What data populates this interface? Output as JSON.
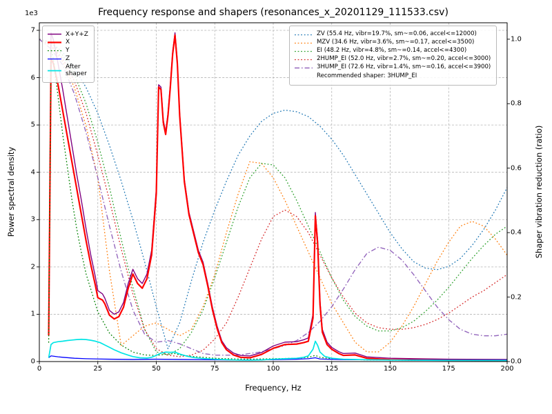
{
  "style": {
    "background": "#ffffff",
    "grid_color": "#b3b3b3",
    "spine_color": "#000000",
    "legend_border": "#b9b9b9"
  },
  "chart_data": {
    "type": "line",
    "title": "Frequency response and shapers (resonances_x_20201129_111533.csv)",
    "xlabel": "Frequency, Hz",
    "ylabel_left": "Power spectral density",
    "ylabel_right": "Shaper vibration reduction (ratio)",
    "left_scale_label": "1e3",
    "grid": true,
    "xlim": [
      0,
      200
    ],
    "ylim_left": [
      0,
      7160
    ],
    "ylim_right": [
      0,
      1.051
    ],
    "x_ticks": {
      "values": [
        0,
        25,
        50,
        75,
        100,
        125,
        150,
        175,
        200
      ],
      "labels": [
        "0",
        "25",
        "50",
        "75",
        "100",
        "125",
        "150",
        "175",
        "200"
      ]
    },
    "y_ticks_left": {
      "values": [
        0,
        1000,
        2000,
        3000,
        4000,
        5000,
        6000,
        7000
      ],
      "labels": [
        "0",
        "1",
        "2",
        "3",
        "4",
        "5",
        "6",
        "7"
      ]
    },
    "y_ticks_right": {
      "values": [
        0,
        0.2,
        0.4,
        0.6,
        0.8,
        1.0
      ],
      "labels": [
        "0.0",
        "0.2",
        "0.4",
        "0.6",
        "0.8",
        "1.0"
      ]
    },
    "legend_note": "Recommended shaper: 3HUMP_EI",
    "psd_series": [
      {
        "name": "X+Y+Z",
        "legend_label": "X+Y+Z",
        "color": "#800080",
        "width": 1.4,
        "dash": "solid",
        "axis": "left",
        "x": [
          4,
          5,
          6,
          8,
          10,
          12,
          14,
          16,
          18,
          20,
          22,
          24,
          25,
          27,
          28,
          30,
          32,
          34,
          36,
          38,
          40,
          42,
          44,
          46,
          48,
          50,
          51,
          52,
          53,
          54,
          55,
          56,
          57,
          58,
          59,
          60,
          62,
          64,
          66,
          68,
          70,
          72,
          74,
          76,
          78,
          80,
          83,
          86,
          90,
          95,
          100,
          105,
          110,
          113,
          115,
          117,
          118,
          119,
          120,
          121,
          123,
          125,
          128,
          130,
          135,
          140,
          150,
          160,
          175,
          200
        ],
        "y": [
          650,
          6950,
          6800,
          6300,
          5750,
          5150,
          4550,
          3950,
          3400,
          2800,
          2250,
          1780,
          1500,
          1430,
          1340,
          1080,
          1000,
          1050,
          1250,
          1650,
          1950,
          1750,
          1650,
          1850,
          2350,
          3650,
          5850,
          5800,
          5100,
          4850,
          5250,
          5850,
          6550,
          6950,
          6350,
          5250,
          3850,
          3150,
          2750,
          2350,
          2100,
          1650,
          1150,
          750,
          440,
          290,
          180,
          130,
          120,
          190,
          330,
          410,
          420,
          460,
          500,
          1000,
          3150,
          2560,
          1280,
          680,
          410,
          300,
          210,
          170,
          180,
          100,
          70,
          60,
          50,
          45
        ]
      },
      {
        "name": "X",
        "legend_label": "X",
        "color": "#ff0000",
        "width": 2.2,
        "dash": "solid",
        "axis": "left",
        "x": [
          4,
          5,
          6,
          8,
          10,
          12,
          14,
          16,
          18,
          20,
          22,
          24,
          25,
          27,
          28,
          30,
          32,
          34,
          36,
          38,
          40,
          42,
          44,
          46,
          48,
          50,
          51,
          52,
          53,
          54,
          55,
          56,
          57,
          58,
          59,
          60,
          62,
          64,
          66,
          68,
          70,
          72,
          74,
          76,
          78,
          80,
          83,
          86,
          90,
          95,
          100,
          105,
          110,
          113,
          115,
          117,
          118,
          119,
          120,
          121,
          123,
          125,
          128,
          130,
          135,
          140,
          150,
          160,
          175,
          200
        ],
        "y": [
          550,
          6400,
          6300,
          5850,
          5300,
          4750,
          4200,
          3650,
          3100,
          2550,
          2050,
          1600,
          1350,
          1300,
          1220,
          980,
          900,
          950,
          1150,
          1550,
          1850,
          1650,
          1550,
          1750,
          2250,
          3550,
          5800,
          5750,
          5050,
          4800,
          5200,
          5800,
          6500,
          6900,
          6300,
          5200,
          3800,
          3100,
          2700,
          2300,
          2050,
          1600,
          1100,
          700,
          400,
          250,
          140,
          90,
          80,
          150,
          280,
          360,
          370,
          400,
          430,
          920,
          3080,
          2480,
          1200,
          620,
          360,
          260,
          170,
          130,
          140,
          70,
          40,
          35,
          28,
          22
        ]
      },
      {
        "name": "Y",
        "legend_label": "Y",
        "color": "#008000",
        "width": 1.3,
        "dash": "dotted",
        "axis": "left",
        "x": [
          4,
          5,
          6,
          8,
          10,
          12,
          14,
          16,
          18,
          20,
          25,
          30,
          35,
          40,
          45,
          50,
          55,
          58,
          60,
          65,
          70,
          75,
          80,
          90,
          100,
          110,
          115,
          118,
          120,
          125,
          130,
          140,
          150,
          175,
          200
        ],
        "y": [
          400,
          6600,
          6400,
          5600,
          4800,
          4100,
          3400,
          2800,
          2300,
          1850,
          1050,
          600,
          350,
          200,
          140,
          130,
          160,
          170,
          140,
          110,
          90,
          70,
          60,
          50,
          60,
          70,
          90,
          130,
          90,
          60,
          45,
          35,
          30,
          25,
          20
        ]
      },
      {
        "name": "Z",
        "legend_label": "Z",
        "color": "#0000ff",
        "width": 1.3,
        "dash": "solid",
        "axis": "left",
        "x": [
          4,
          5,
          8,
          10,
          15,
          20,
          25,
          30,
          40,
          50,
          60,
          70,
          80,
          90,
          100,
          110,
          115,
          118,
          120,
          130,
          150,
          175,
          200
        ],
        "y": [
          80,
          120,
          100,
          90,
          70,
          60,
          55,
          50,
          45,
          50,
          45,
          40,
          35,
          35,
          40,
          50,
          60,
          80,
          55,
          40,
          35,
          30,
          30
        ]
      },
      {
        "name": "After shaper",
        "legend_label": "After\nshaper",
        "color": "#00e5e5",
        "width": 1.7,
        "dash": "solid",
        "axis": "left",
        "x": [
          4,
          5,
          6,
          8,
          10,
          12,
          14,
          16,
          18,
          20,
          22,
          24,
          26,
          28,
          30,
          32,
          35,
          38,
          40,
          43,
          46,
          48,
          50,
          52,
          54,
          56,
          58,
          60,
          63,
          66,
          70,
          75,
          80,
          85,
          90,
          95,
          100,
          105,
          110,
          113,
          115,
          117,
          118,
          119,
          120,
          122,
          125,
          130,
          140,
          150,
          160,
          175,
          200
        ],
        "y": [
          80,
          360,
          400,
          420,
          430,
          445,
          455,
          465,
          470,
          465,
          450,
          430,
          400,
          350,
          300,
          250,
          185,
          135,
          105,
          80,
          75,
          90,
          130,
          180,
          200,
          195,
          200,
          160,
          115,
          85,
          65,
          50,
          40,
          32,
          30,
          35,
          50,
          60,
          70,
          90,
          120,
          260,
          430,
          340,
          200,
          110,
          70,
          50,
          38,
          32,
          28,
          24,
          22
        ]
      }
    ],
    "shaper_x": [
      0,
      5,
      10,
      15,
      20,
      25,
      30,
      35,
      40,
      45,
      50,
      55,
      60,
      65,
      70,
      75,
      80,
      85,
      90,
      95,
      100,
      105,
      110,
      115,
      120,
      125,
      130,
      135,
      140,
      145,
      150,
      155,
      160,
      165,
      170,
      175,
      180,
      185,
      190,
      195,
      200
    ],
    "shaper_series": [
      {
        "name": "ZV",
        "legend_label": "ZV (55.4 Hz, vibr=19.7%, sm~=0.06, accel<=12000)",
        "color": "#1f77b4",
        "width": 1.3,
        "dash": "dotted",
        "axis": "right",
        "y": [
          1.0,
          0.99,
          0.96,
          0.91,
          0.85,
          0.77,
          0.67,
          0.56,
          0.44,
          0.31,
          0.17,
          0.04,
          0.12,
          0.25,
          0.37,
          0.47,
          0.56,
          0.64,
          0.7,
          0.745,
          0.77,
          0.78,
          0.775,
          0.76,
          0.73,
          0.69,
          0.64,
          0.58,
          0.52,
          0.46,
          0.4,
          0.35,
          0.31,
          0.29,
          0.285,
          0.295,
          0.32,
          0.36,
          0.41,
          0.47,
          0.54
        ]
      },
      {
        "name": "MZV",
        "legend_label": "MZV (34.6 Hz, vibr=3.6%, sm~=0.17, accel<=3500)",
        "color": "#ff7f0e",
        "width": 1.3,
        "dash": "dotted",
        "axis": "right",
        "y": [
          1.0,
          0.98,
          0.93,
          0.85,
          0.73,
          0.57,
          0.28,
          0.05,
          0.08,
          0.11,
          0.12,
          0.1,
          0.08,
          0.1,
          0.17,
          0.27,
          0.4,
          0.52,
          0.62,
          0.615,
          0.57,
          0.5,
          0.42,
          0.34,
          0.26,
          0.18,
          0.12,
          0.06,
          0.03,
          0.03,
          0.06,
          0.11,
          0.17,
          0.24,
          0.31,
          0.37,
          0.42,
          0.435,
          0.42,
          0.38,
          0.33
        ]
      },
      {
        "name": "EI",
        "legend_label": "EI (48.2 Hz, vibr=4.8%, sm~=0.14, accel<=4300)",
        "color": "#2ca02c",
        "width": 1.3,
        "dash": "dotted",
        "axis": "right",
        "y": [
          1.0,
          0.99,
          0.95,
          0.89,
          0.8,
          0.68,
          0.54,
          0.38,
          0.23,
          0.1,
          0.03,
          0.02,
          0.04,
          0.09,
          0.16,
          0.26,
          0.37,
          0.48,
          0.57,
          0.615,
          0.61,
          0.57,
          0.5,
          0.42,
          0.34,
          0.26,
          0.19,
          0.14,
          0.11,
          0.095,
          0.095,
          0.105,
          0.125,
          0.155,
          0.19,
          0.23,
          0.275,
          0.32,
          0.36,
          0.395,
          0.42
        ]
      },
      {
        "name": "2HUMP_EI",
        "legend_label": "2HUMP_EI (52.0 Hz, vibr=2.7%, sm~=0.20, accel<=3000)",
        "color": "#d62728",
        "width": 1.3,
        "dash": "dotted",
        "axis": "right",
        "y": [
          1.0,
          0.98,
          0.94,
          0.87,
          0.77,
          0.64,
          0.5,
          0.35,
          0.21,
          0.1,
          0.04,
          0.02,
          0.015,
          0.02,
          0.035,
          0.07,
          0.12,
          0.2,
          0.29,
          0.38,
          0.45,
          0.47,
          0.45,
          0.4,
          0.33,
          0.26,
          0.2,
          0.15,
          0.12,
          0.105,
          0.1,
          0.1,
          0.105,
          0.115,
          0.13,
          0.15,
          0.175,
          0.2,
          0.22,
          0.245,
          0.27
        ]
      },
      {
        "name": "3HUMP_EI",
        "legend_label": "3HUMP_EI (72.6 Hz, vibr=1.4%, sm~=0.16, accel<=3900)",
        "color": "#9467bd",
        "width": 1.4,
        "dash": "dashdot",
        "axis": "right",
        "y": [
          1.0,
          0.97,
          0.92,
          0.83,
          0.71,
          0.57,
          0.42,
          0.28,
          0.16,
          0.085,
          0.06,
          0.065,
          0.055,
          0.04,
          0.025,
          0.02,
          0.02,
          0.02,
          0.025,
          0.03,
          0.04,
          0.05,
          0.065,
          0.09,
          0.125,
          0.17,
          0.225,
          0.285,
          0.335,
          0.355,
          0.345,
          0.315,
          0.27,
          0.22,
          0.17,
          0.13,
          0.1,
          0.085,
          0.08,
          0.08,
          0.085
        ]
      }
    ]
  }
}
